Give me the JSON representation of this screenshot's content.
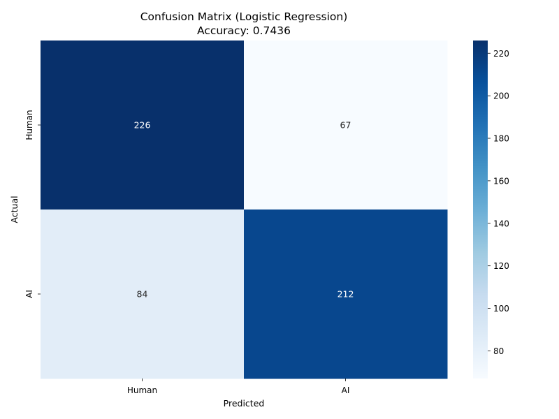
{
  "chart_data": {
    "type": "heatmap",
    "title": "Confusion Matrix (Logistic Regression)",
    "subtitle": "Accuracy: 0.7436",
    "xlabel": "Predicted",
    "ylabel": "Actual",
    "x_categories": [
      "Human",
      "AI"
    ],
    "y_categories": [
      "Human",
      "AI"
    ],
    "values": [
      [
        226,
        67
      ],
      [
        84,
        212
      ]
    ],
    "colormap": "Blues",
    "colorbar": {
      "min": 67,
      "max": 226,
      "ticks": [
        80,
        100,
        120,
        140,
        160,
        180,
        200,
        220
      ]
    },
    "grid": false
  }
}
